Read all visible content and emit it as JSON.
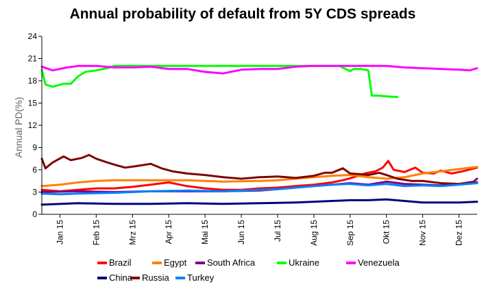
{
  "chart_data": {
    "type": "line",
    "title": "Annual probability of default from 5Y CDS spreads",
    "xlabel": "",
    "ylabel": "Annual PD(%)",
    "ylim": [
      0,
      24
    ],
    "yticks": [
      "0",
      "3",
      "6",
      "9",
      "12",
      "15",
      "18",
      "21",
      "24"
    ],
    "x_domain": [
      0,
      12
    ],
    "x_ticks": [
      {
        "label": "Jan 15",
        "x": 0.5
      },
      {
        "label": "Feb 15",
        "x": 1.5
      },
      {
        "label": "Mrz 15",
        "x": 2.5
      },
      {
        "label": "Apr 15",
        "x": 3.5
      },
      {
        "label": "Mai 15",
        "x": 4.5
      },
      {
        "label": "Jun 15",
        "x": 5.5
      },
      {
        "label": "Jul 15",
        "x": 6.5
      },
      {
        "label": "Aug 15",
        "x": 7.5
      },
      {
        "label": "Sep 15",
        "x": 8.5
      },
      {
        "label": "Okt 15",
        "x": 9.5
      },
      {
        "label": "Nov 15",
        "x": 10.5
      },
      {
        "label": "Dez 15",
        "x": 11.5
      }
    ],
    "grid": false,
    "legend": "bottom",
    "series": [
      {
        "name": "Brazil",
        "color": "#ff0000",
        "x": [
          0,
          0.5,
          1,
          1.5,
          2,
          2.5,
          3,
          3.5,
          4,
          4.5,
          5,
          5.5,
          6,
          6.5,
          7,
          7.5,
          8,
          8.3,
          8.6,
          8.9,
          9.2,
          9.4,
          9.55,
          9.7,
          10,
          10.3,
          10.5,
          10.8,
          11,
          11.3,
          11.6,
          12
        ],
        "y": [
          3.3,
          3.1,
          3.3,
          3.5,
          3.5,
          3.7,
          4.0,
          4.3,
          3.8,
          3.5,
          3.3,
          3.3,
          3.5,
          3.6,
          3.8,
          4.0,
          4.3,
          4.6,
          5.0,
          5.5,
          5.8,
          6.3,
          7.2,
          6.0,
          5.7,
          6.3,
          5.6,
          5.5,
          5.9,
          5.5,
          5.8,
          6.3
        ]
      },
      {
        "name": "Egypt",
        "color": "#ff8000",
        "x": [
          0,
          0.5,
          1,
          1.5,
          2,
          3,
          4,
          5,
          6,
          6.5,
          7,
          7.5,
          8,
          8.5,
          9,
          9.5,
          10,
          10.5,
          11,
          11.5,
          12
        ],
        "y": [
          3.8,
          4.0,
          4.3,
          4.5,
          4.6,
          4.6,
          4.6,
          4.4,
          4.5,
          4.6,
          4.8,
          5.0,
          5.2,
          5.3,
          5.0,
          4.8,
          5.0,
          5.5,
          5.8,
          6.1,
          6.4
        ]
      },
      {
        "name": "South Africa",
        "color": "#800080",
        "x": [
          0,
          1,
          2,
          3,
          4,
          5,
          6,
          6.5,
          7,
          7.5,
          8,
          8.5,
          9,
          9.5,
          10,
          10.5,
          11,
          11.5,
          11.9,
          12
        ],
        "y": [
          3.0,
          3.1,
          3.0,
          3.1,
          3.1,
          3.1,
          3.2,
          3.4,
          3.6,
          3.8,
          4.0,
          4.2,
          4.0,
          4.4,
          4.1,
          4.0,
          3.9,
          4.1,
          4.4,
          4.8
        ]
      },
      {
        "name": "Ukraine",
        "color": "#00ff00",
        "x": [
          0,
          0.1,
          0.3,
          0.6,
          0.8,
          1.0,
          1.2,
          1.5,
          1.8,
          2.0,
          2.5,
          3,
          4,
          5,
          6,
          7,
          8,
          8.2,
          8.5,
          8.6,
          8.8,
          9.0,
          9.1,
          9.3,
          9.5,
          9.8
        ],
        "y": [
          19.5,
          17.5,
          17.2,
          17.6,
          17.6,
          18.6,
          19.2,
          19.4,
          19.7,
          20.0,
          20.0,
          20.0,
          20.0,
          20.0,
          20.0,
          20.0,
          20.0,
          20.0,
          19.3,
          19.6,
          19.6,
          19.4,
          16.0,
          16.0,
          15.9,
          15.8
        ]
      },
      {
        "name": "Venezuela",
        "color": "#ff00ff",
        "x": [
          0,
          0.3,
          0.7,
          1,
          1.5,
          2,
          2.5,
          3,
          3.5,
          4,
          4.5,
          5,
          5.5,
          6,
          6.5,
          7,
          7.5,
          8,
          8.5,
          9,
          9.5,
          10,
          10.5,
          11,
          11.5,
          11.8,
          12
        ],
        "y": [
          19.9,
          19.4,
          19.8,
          20.0,
          20.0,
          19.8,
          19.8,
          19.9,
          19.6,
          19.6,
          19.2,
          19.0,
          19.5,
          19.6,
          19.6,
          19.9,
          20.0,
          20.0,
          20.0,
          20.0,
          20.0,
          19.8,
          19.7,
          19.6,
          19.5,
          19.4,
          19.7
        ]
      },
      {
        "name": "China",
        "color": "#000080",
        "x": [
          0,
          1,
          2,
          3,
          4,
          5,
          6,
          7,
          7.5,
          8,
          8.5,
          9,
          9.5,
          10,
          10.5,
          11,
          11.5,
          12
        ],
        "y": [
          1.3,
          1.5,
          1.4,
          1.4,
          1.5,
          1.4,
          1.5,
          1.6,
          1.7,
          1.8,
          1.9,
          1.9,
          2.0,
          1.8,
          1.6,
          1.6,
          1.6,
          1.7
        ]
      },
      {
        "name": "Russia",
        "color": "#800000",
        "x": [
          0,
          0.1,
          0.3,
          0.6,
          0.8,
          1.1,
          1.3,
          1.5,
          1.8,
          2.0,
          2.3,
          2.6,
          3.0,
          3.3,
          3.6,
          4.0,
          4.5,
          5.0,
          5.5,
          6.0,
          6.5,
          7.0,
          7.5,
          7.8,
          8.0,
          8.3,
          8.5,
          8.8,
          9.0,
          9.3,
          9.5,
          9.8,
          10.2,
          10.5,
          11,
          11.5,
          12
        ],
        "y": [
          7.5,
          6.2,
          7.0,
          7.8,
          7.3,
          7.6,
          8.0,
          7.5,
          7.0,
          6.7,
          6.3,
          6.5,
          6.8,
          6.2,
          5.8,
          5.5,
          5.3,
          5.0,
          4.8,
          5.0,
          5.1,
          4.9,
          5.2,
          5.6,
          5.6,
          6.2,
          5.5,
          5.4,
          5.3,
          5.6,
          5.3,
          4.8,
          4.5,
          4.5,
          4.2,
          4.1,
          4.3
        ]
      },
      {
        "name": "Turkey",
        "color": "#0080ff",
        "x": [
          0,
          0.5,
          1,
          2,
          3,
          4,
          5,
          6,
          6.5,
          7,
          7.5,
          8,
          8.5,
          9,
          9.5,
          10,
          10.5,
          11,
          11.5,
          12
        ],
        "y": [
          2.8,
          2.7,
          2.8,
          2.9,
          3.1,
          3.2,
          3.1,
          3.3,
          3.4,
          3.6,
          3.8,
          4.0,
          4.1,
          3.9,
          4.1,
          3.8,
          3.9,
          3.8,
          4.0,
          4.2
        ]
      }
    ]
  }
}
